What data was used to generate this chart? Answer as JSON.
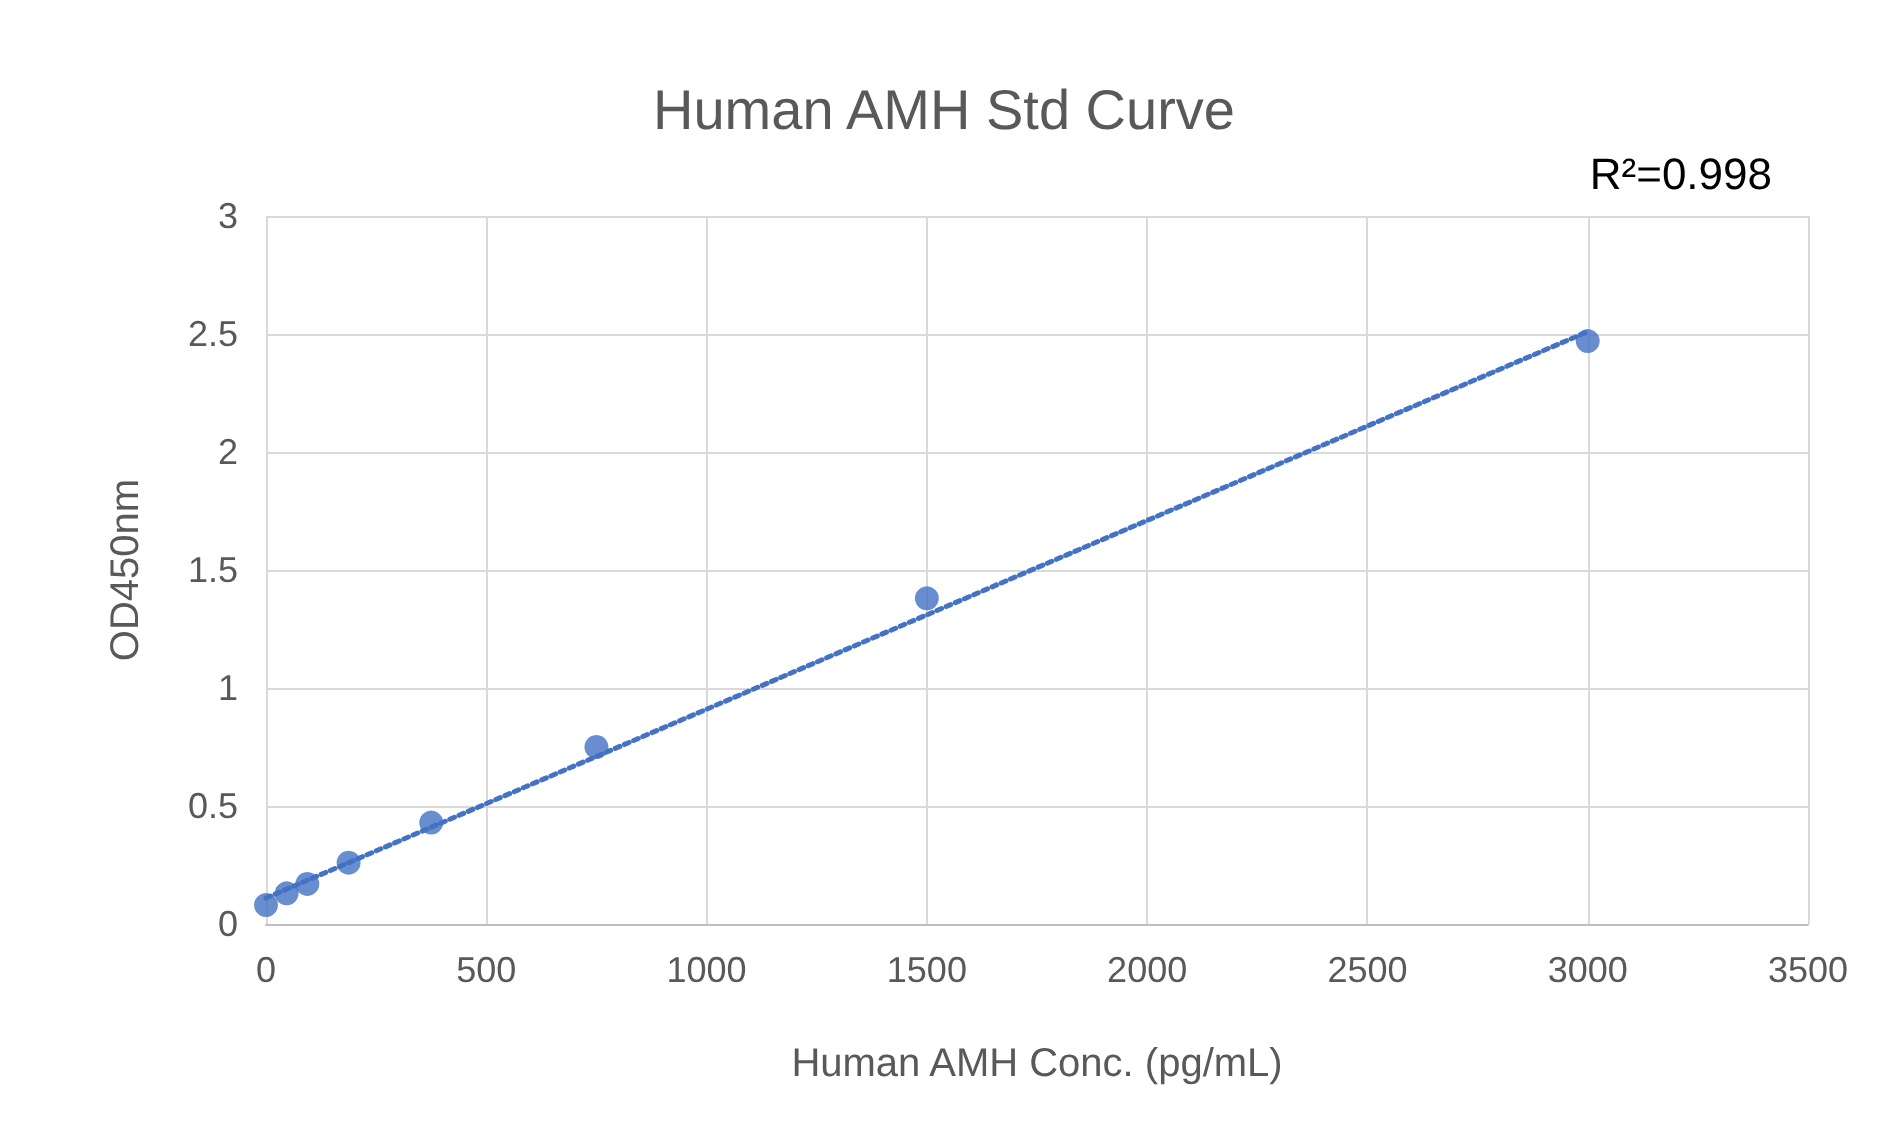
{
  "chart_data": {
    "type": "scatter",
    "title": "Human AMH Std Curve",
    "xlabel": "Human AMH Conc. (pg/mL)",
    "ylabel": "OD450nm",
    "annotations": [
      "R²=0.998"
    ],
    "series": [
      {
        "color": "#4472c4",
        "marker": "circle",
        "x": [
          0,
          46.9,
          93.75,
          187.5,
          375,
          750,
          1500,
          3000
        ],
        "values": [
          0.08,
          0.13,
          0.17,
          0.26,
          0.43,
          0.75,
          1.38,
          2.47
        ]
      },
      {
        "type": "line",
        "color": "#4472c4",
        "marker": "none",
        "line_style": "dotted",
        "x": [
          0,
          3000
        ],
        "values": [
          0.11,
          2.51
        ]
      }
    ],
    "xlim": [
      0,
      3500
    ],
    "xticks": [
      0,
      500,
      1000,
      1500,
      2000,
      2500,
      3000,
      3500
    ],
    "ylim": [
      0,
      3
    ],
    "yticks": [
      0,
      0.5,
      1,
      1.5,
      2,
      2.5,
      3
    ],
    "grid": true
  }
}
